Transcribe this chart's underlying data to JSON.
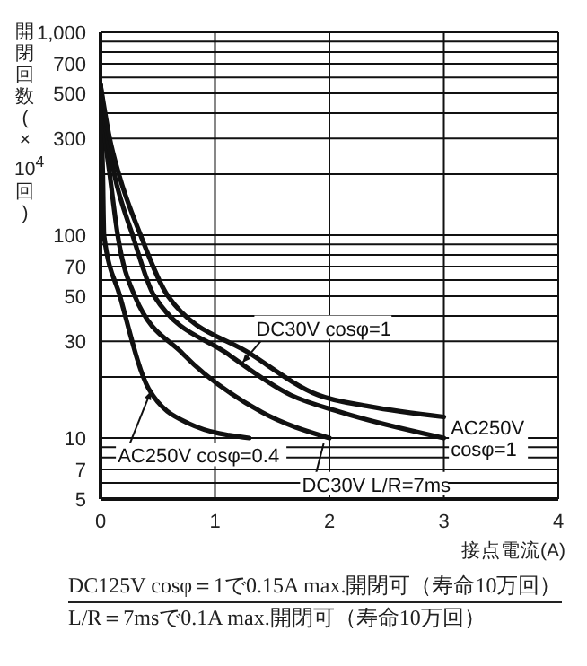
{
  "chart_data": {
    "type": "line",
    "xlabel": "接点電流(A)",
    "ylabel": "開閉回数(×10$^{4}$回)",
    "xlim": [
      0,
      4
    ],
    "xticks": [
      0,
      1,
      2,
      3,
      4
    ],
    "ylim": [
      5,
      1000
    ],
    "log": "y",
    "yticks": [
      5,
      {
        "value": 6,
        "label": null
      },
      7,
      {
        "value": 8,
        "label": null
      },
      {
        "value": 9,
        "label": null
      },
      10,
      {
        "value": 20,
        "label": null
      },
      30,
      {
        "value": 40,
        "label": null
      },
      50,
      {
        "value": 60,
        "label": null
      },
      70,
      {
        "value": 80,
        "label": null
      },
      {
        "value": 90,
        "label": null
      },
      100,
      {
        "value": 200,
        "label": null
      },
      300,
      {
        "value": 400,
        "label": null
      },
      500,
      {
        "value": 600,
        "label": null
      },
      700,
      {
        "value": 800,
        "label": null
      },
      {
        "value": 900,
        "label": null
      },
      {
        "value": 1000,
        "label": "1,000"
      }
    ],
    "grid": true,
    "marker": "none",
    "line_style": "solid",
    "series": [
      {
        "name": "AC250V cosφ=0.4",
        "color": "#111111",
        "x": [
          0,
          0.02,
          0.03,
          0.17,
          0.42,
          0.77,
          1.3
        ],
        "values": [
          550,
          200,
          100,
          50,
          17.5,
          11.8,
          10
        ]
      },
      {
        "name": "DC30V L/R=7ms",
        "color": "#111111",
        "x": [
          0,
          0.04,
          0.08,
          0.15,
          0.3,
          0.72,
          1.41,
          2
        ],
        "values": [
          550,
          300,
          200,
          100,
          50,
          26,
          13.4,
          10
        ]
      },
      {
        "name": "AC250V cosφ=1",
        "color": "#111111",
        "x": [
          0,
          0.06,
          0.12,
          0.28,
          0.47,
          1.11,
          1.66,
          2.1,
          3
        ],
        "values": [
          550,
          300,
          200,
          100,
          50,
          26,
          16.3,
          13.4,
          10
        ]
      },
      {
        "name": "DC30V cosφ=1",
        "color": "#111111",
        "x": [
          0,
          0.08,
          0.16,
          0.35,
          0.59,
          1.31,
          1.9,
          2.35,
          3
        ],
        "values": [
          550,
          300,
          200,
          100,
          50,
          26,
          16.3,
          14.3,
          12.7
        ]
      }
    ],
    "annotations": [
      "DC125V cosφ＝1で0.15A max.開閉可（寿命10万回）",
      "L/R＝7msで0.1A max.開閉可（寿命10万回）"
    ]
  }
}
